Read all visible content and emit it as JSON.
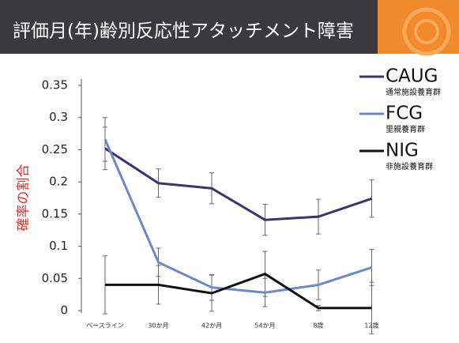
{
  "chart_data": {
    "type": "line",
    "title": "評価月(年)齢別反応性アタッチメント障害",
    "ylabel": "確率の割合",
    "categories": [
      "ベースライン",
      "30か月",
      "42か月",
      "54か月",
      "8歳",
      "12歳"
    ],
    "ylim": [
      0,
      0.35
    ],
    "yticks": [
      0,
      0.05,
      0.1,
      0.15,
      0.2,
      0.25,
      0.3,
      0.35
    ],
    "grid": false,
    "series": [
      {
        "name": "CAUG",
        "description": "通常施設養育群",
        "color": "#3b3270",
        "values": [
          0.252,
          0.198,
          0.19,
          0.141,
          0.146,
          0.174
        ],
        "errors": [
          0.033,
          0.022,
          0.024,
          0.024,
          0.027,
          0.029
        ]
      },
      {
        "name": "FCG",
        "description": "里親養育群",
        "color": "#6d88c9",
        "values": [
          0.266,
          0.075,
          0.036,
          0.028,
          0.04,
          0.067
        ],
        "errors": [
          0.034,
          0.022,
          0.02,
          0.022,
          0.023,
          0.028
        ]
      },
      {
        "name": "NIG",
        "description": "非施設養育群",
        "color": "#111111",
        "values": [
          0.04,
          0.04,
          0.027,
          0.057,
          0.004,
          0.004
        ],
        "errors": [
          0.045,
          0.03,
          0.028,
          0.035,
          0.004,
          0.04
        ]
      }
    ]
  }
}
